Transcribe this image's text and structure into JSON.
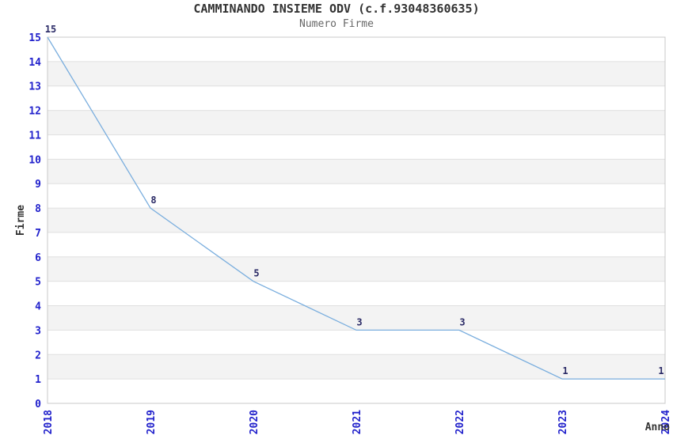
{
  "chart_data": {
    "type": "line",
    "title": "CAMMINANDO INSIEME ODV (c.f.93048360635)",
    "subtitle": "Numero Firme",
    "xlabel": "Anno",
    "ylabel": "Firme",
    "categories": [
      "2018",
      "2019",
      "2020",
      "2021",
      "2022",
      "2023",
      "2024"
    ],
    "values": [
      15,
      8,
      5,
      3,
      3,
      1,
      1
    ],
    "ylim": [
      0,
      15
    ],
    "yticks": [
      0,
      1,
      2,
      3,
      4,
      5,
      6,
      7,
      8,
      9,
      10,
      11,
      12,
      13,
      14,
      15
    ],
    "grid": true,
    "legend": "none",
    "band_pattern": "alternating-horizontal",
    "colors": {
      "background": "#ffffff",
      "line": "#7aaede",
      "band": "#f3f3f3",
      "grid": "#e0e0e0",
      "border": "#c8c8c8",
      "tick_label": "#2222cc",
      "data_label": "#2a2a66",
      "title": "#333333",
      "subtitle": "#666666",
      "axis_label": "#333333"
    }
  }
}
